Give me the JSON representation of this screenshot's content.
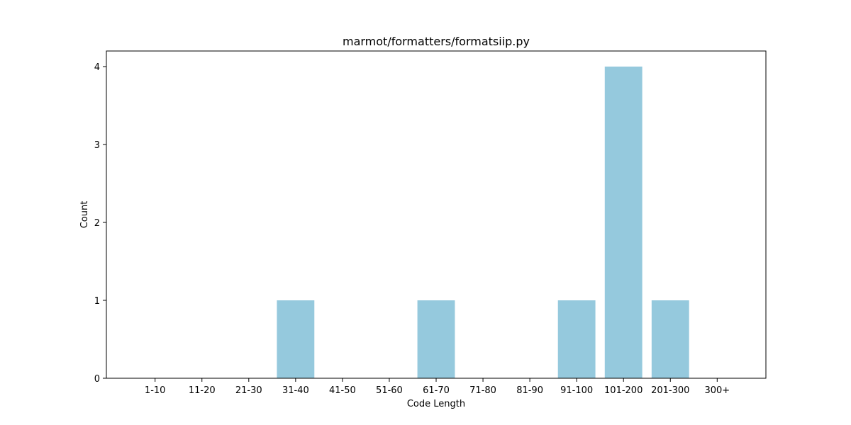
{
  "chart_data": {
    "type": "bar",
    "title": "marmot/formatters/formatsiip.py",
    "xlabel": "Code Length",
    "ylabel": "Count",
    "categories": [
      "1-10",
      "11-20",
      "21-30",
      "31-40",
      "41-50",
      "51-60",
      "61-70",
      "71-80",
      "81-90",
      "91-100",
      "101-200",
      "201-300",
      "300+"
    ],
    "values": [
      0,
      0,
      0,
      1,
      0,
      0,
      1,
      0,
      0,
      1,
      4,
      1,
      0
    ],
    "yticks": [
      0,
      1,
      2,
      3,
      4
    ],
    "ylim": [
      0,
      4.2
    ],
    "grid": false,
    "bar_color": "#95c9dd"
  }
}
